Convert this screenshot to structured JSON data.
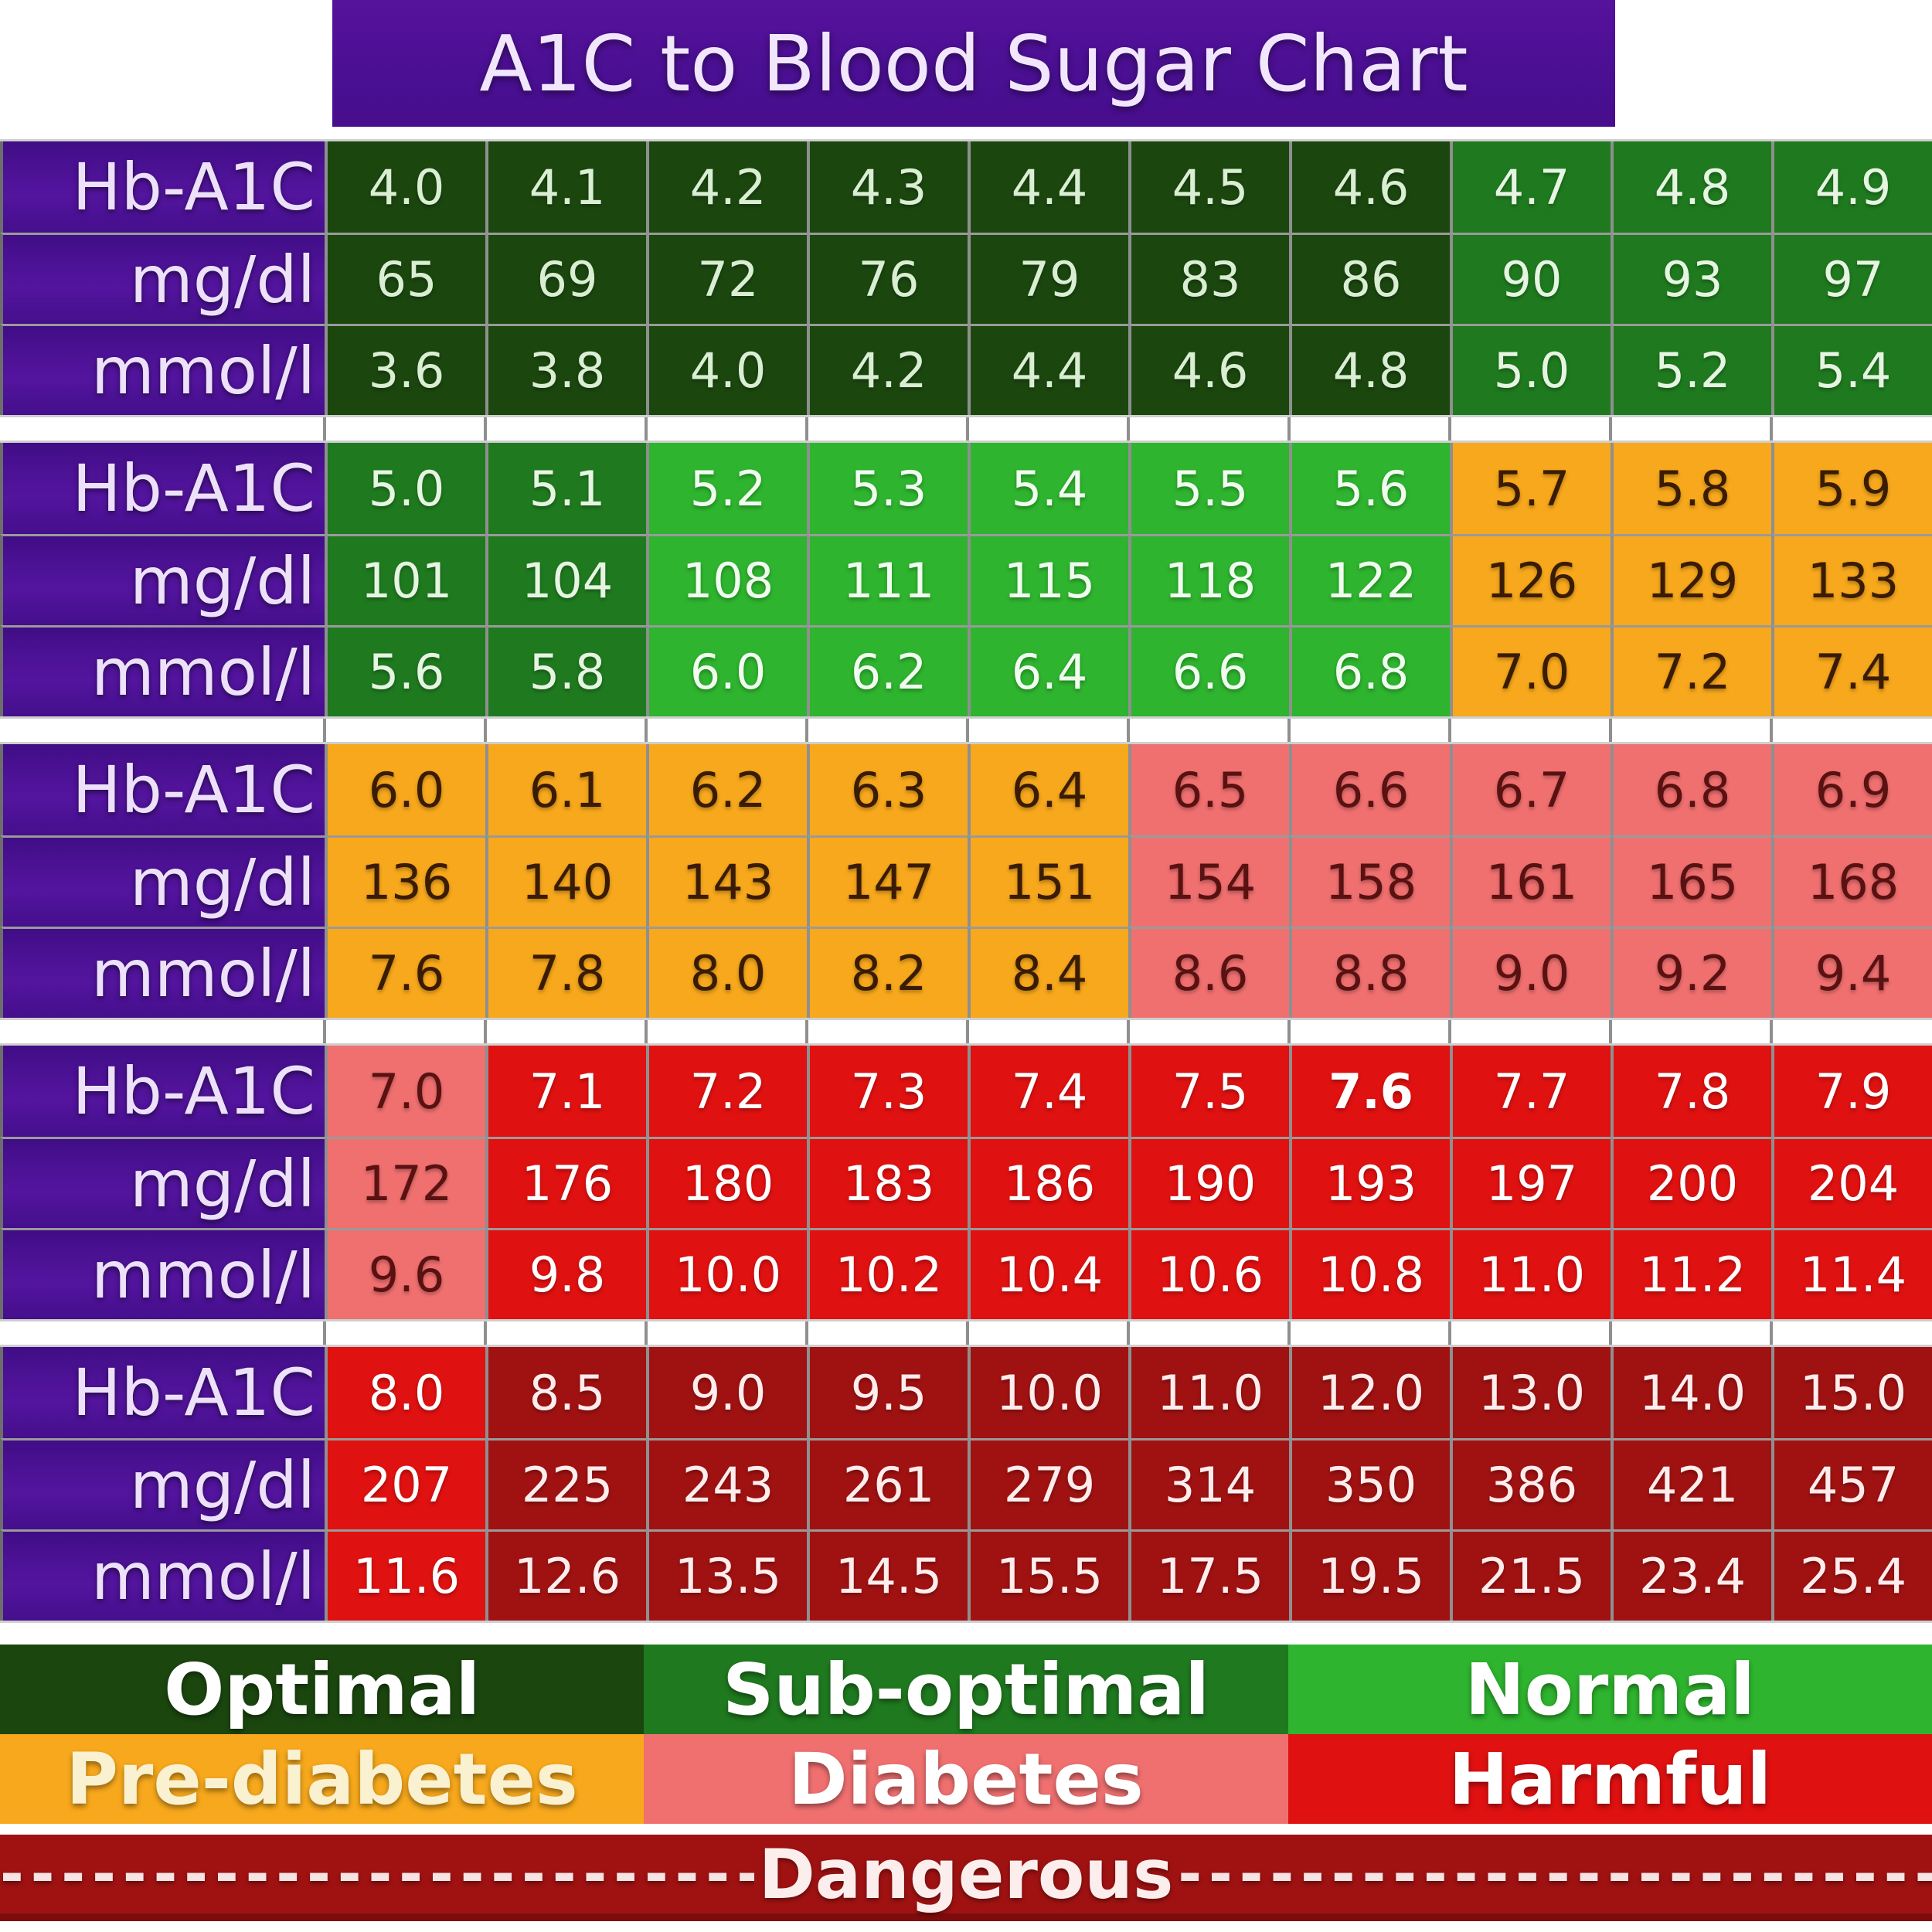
{
  "chart_data": {
    "type": "table",
    "title": "A1C to Blood Sugar Chart",
    "row_labels": [
      "Hb-A1C",
      "mg/dl",
      "mmol/l"
    ],
    "categories": {
      "optimal": {
        "name": "Optimal",
        "bg": "#1b470f",
        "fg": "#d9eed2"
      },
      "suboptimal": {
        "name": "Sub-optimal",
        "bg": "#1f7a1f",
        "fg": "#e6f5e2"
      },
      "normal": {
        "name": "Normal",
        "bg": "#2eb42e",
        "fg": "#f0fcef"
      },
      "prediabetes": {
        "name": "Pre-diabetes",
        "bg": "#f7a81c",
        "fg": "#3a1c05"
      },
      "diabetes": {
        "name": "Diabetes",
        "bg": "#f07070",
        "fg": "#591111"
      },
      "harmful": {
        "name": "Harmful",
        "bg": "#e01111",
        "fg": "#ffffff"
      },
      "dangerous": {
        "name": "Dangerous",
        "bg": "#a01212",
        "fg": "#ffecec"
      }
    },
    "blocks": [
      {
        "a1c": [
          "4.0",
          "4.1",
          "4.2",
          "4.3",
          "4.4",
          "4.5",
          "4.6",
          "4.7",
          "4.8",
          "4.9"
        ],
        "mg_dl": [
          "65",
          "69",
          "72",
          "76",
          "79",
          "83",
          "86",
          "90",
          "93",
          "97"
        ],
        "mmol_l": [
          "3.6",
          "3.8",
          "4.0",
          "4.2",
          "4.4",
          "4.6",
          "4.8",
          "5.0",
          "5.2",
          "5.4"
        ],
        "category": [
          "optimal",
          "optimal",
          "optimal",
          "optimal",
          "optimal",
          "optimal",
          "optimal",
          "suboptimal",
          "suboptimal",
          "suboptimal"
        ],
        "bold_a1c_index": null
      },
      {
        "a1c": [
          "5.0",
          "5.1",
          "5.2",
          "5.3",
          "5.4",
          "5.5",
          "5.6",
          "5.7",
          "5.8",
          "5.9"
        ],
        "mg_dl": [
          "101",
          "104",
          "108",
          "111",
          "115",
          "118",
          "122",
          "126",
          "129",
          "133"
        ],
        "mmol_l": [
          "5.6",
          "5.8",
          "6.0",
          "6.2",
          "6.4",
          "6.6",
          "6.8",
          "7.0",
          "7.2",
          "7.4"
        ],
        "category": [
          "suboptimal",
          "suboptimal",
          "normal",
          "normal",
          "normal",
          "normal",
          "normal",
          "prediabetes",
          "prediabetes",
          "prediabetes"
        ],
        "bold_a1c_index": null
      },
      {
        "a1c": [
          "6.0",
          "6.1",
          "6.2",
          "6.3",
          "6.4",
          "6.5",
          "6.6",
          "6.7",
          "6.8",
          "6.9"
        ],
        "mg_dl": [
          "136",
          "140",
          "143",
          "147",
          "151",
          "154",
          "158",
          "161",
          "165",
          "168"
        ],
        "mmol_l": [
          "7.6",
          "7.8",
          "8.0",
          "8.2",
          "8.4",
          "8.6",
          "8.8",
          "9.0",
          "9.2",
          "9.4"
        ],
        "category": [
          "prediabetes",
          "prediabetes",
          "prediabetes",
          "prediabetes",
          "prediabetes",
          "diabetes",
          "diabetes",
          "diabetes",
          "diabetes",
          "diabetes"
        ],
        "bold_a1c_index": null
      },
      {
        "a1c": [
          "7.0",
          "7.1",
          "7.2",
          "7.3",
          "7.4",
          "7.5",
          "7.6",
          "7.7",
          "7.8",
          "7.9"
        ],
        "mg_dl": [
          "172",
          "176",
          "180",
          "183",
          "186",
          "190",
          "193",
          "197",
          "200",
          "204"
        ],
        "mmol_l": [
          "9.6",
          "9.8",
          "10.0",
          "10.2",
          "10.4",
          "10.6",
          "10.8",
          "11.0",
          "11.2",
          "11.4"
        ],
        "category": [
          "diabetes",
          "harmful",
          "harmful",
          "harmful",
          "harmful",
          "harmful",
          "harmful",
          "harmful",
          "harmful",
          "harmful"
        ],
        "bold_a1c_index": 6
      },
      {
        "a1c": [
          "8.0",
          "8.5",
          "9.0",
          "9.5",
          "10.0",
          "11.0",
          "12.0",
          "13.0",
          "14.0",
          "15.0"
        ],
        "mg_dl": [
          "207",
          "225",
          "243",
          "261",
          "279",
          "314",
          "350",
          "386",
          "421",
          "457"
        ],
        "mmol_l": [
          "11.6",
          "12.6",
          "13.5",
          "14.5",
          "15.5",
          "17.5",
          "19.5",
          "21.5",
          "23.4",
          "25.4"
        ],
        "category": [
          "harmful",
          "dangerous",
          "dangerous",
          "dangerous",
          "dangerous",
          "dangerous",
          "dangerous",
          "dangerous",
          "dangerous",
          "dangerous"
        ],
        "bold_a1c_index": null
      }
    ],
    "legend": {
      "rows": [
        [
          {
            "label": "Optimal",
            "category": "optimal",
            "fg": "#ffffff"
          },
          {
            "label": "Sub-optimal",
            "category": "suboptimal",
            "fg": "#ffffff"
          },
          {
            "label": "Normal",
            "category": "normal",
            "fg": "#ffffff"
          }
        ],
        [
          {
            "label": "Pre-diabetes",
            "category": "prediabetes",
            "fg": "#f9f1cf"
          },
          {
            "label": "Diabetes",
            "category": "diabetes",
            "fg": "#ffffff"
          },
          {
            "label": "Harmful",
            "category": "harmful",
            "fg": "#ffffff"
          }
        ]
      ],
      "dangerous": {
        "label": "Dangerous",
        "category": "dangerous",
        "fg": "#fdeeee",
        "dashes": "----------------------------------------"
      }
    }
  }
}
